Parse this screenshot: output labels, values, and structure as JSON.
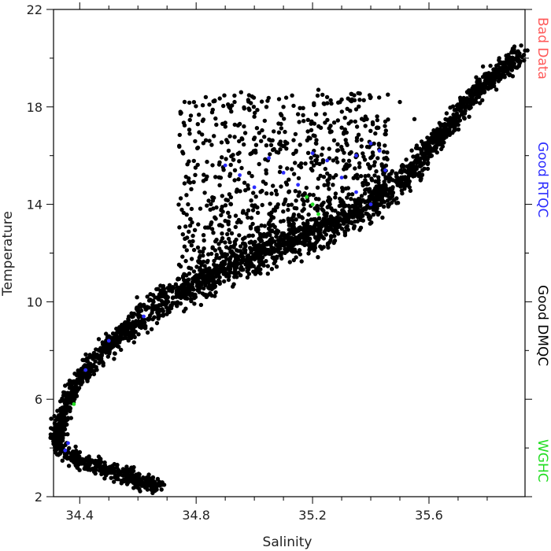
{
  "chart_data": {
    "type": "scatter",
    "xlabel": "Salinity",
    "ylabel": "Temperature",
    "xlim": [
      34.31,
      35.93
    ],
    "ylim": [
      2,
      22
    ],
    "x_ticks": [
      "34.4",
      "34.8",
      "35.2",
      "35.6"
    ],
    "y_ticks": [
      "2",
      "6",
      "10",
      "14",
      "18",
      "22"
    ],
    "grid": false,
    "legend_placement": "right side, vertical",
    "series": [
      {
        "name": "Bad Data",
        "color": "#ff5a5a"
      },
      {
        "name": "Good RTQC",
        "color": "#2c2cff"
      },
      {
        "name": "Good DMQC",
        "color": "#000000"
      },
      {
        "name": "WGHC",
        "color": "#22dd22"
      }
    ],
    "main_curve": [
      {
        "x": 34.68,
        "y": 2.4
      },
      {
        "x": 34.6,
        "y": 2.7
      },
      {
        "x": 34.5,
        "y": 3.1
      },
      {
        "x": 34.4,
        "y": 3.5
      },
      {
        "x": 34.34,
        "y": 3.9
      },
      {
        "x": 34.32,
        "y": 4.5
      },
      {
        "x": 34.34,
        "y": 5.3
      },
      {
        "x": 34.37,
        "y": 6.2
      },
      {
        "x": 34.42,
        "y": 7.2
      },
      {
        "x": 34.5,
        "y": 8.2
      },
      {
        "x": 34.6,
        "y": 9.2
      },
      {
        "x": 34.72,
        "y": 10.2
      },
      {
        "x": 34.88,
        "y": 11.2
      },
      {
        "x": 35.05,
        "y": 12.1
      },
      {
        "x": 35.25,
        "y": 13.0
      },
      {
        "x": 35.4,
        "y": 13.9
      },
      {
        "x": 35.55,
        "y": 15.5
      },
      {
        "x": 35.65,
        "y": 17.0
      },
      {
        "x": 35.75,
        "y": 18.5
      },
      {
        "x": 35.85,
        "y": 19.5
      },
      {
        "x": 35.92,
        "y": 20.2
      }
    ],
    "upper_cloud": {
      "x_range": [
        34.72,
        35.5
      ],
      "y_range": [
        11.0,
        18.7
      ],
      "density": "dense near the main curve, sparse above"
    },
    "rtqc_points": [
      {
        "x": 34.9,
        "y": 15.6
      },
      {
        "x": 34.95,
        "y": 15.2
      },
      {
        "x": 35.0,
        "y": 14.7
      },
      {
        "x": 35.05,
        "y": 15.9
      },
      {
        "x": 35.1,
        "y": 15.3
      },
      {
        "x": 35.15,
        "y": 14.8
      },
      {
        "x": 35.2,
        "y": 16.1
      },
      {
        "x": 35.25,
        "y": 15.8
      },
      {
        "x": 35.3,
        "y": 15.1
      },
      {
        "x": 35.35,
        "y": 14.5
      },
      {
        "x": 35.4,
        "y": 16.5
      },
      {
        "x": 35.43,
        "y": 16.2
      },
      {
        "x": 35.35,
        "y": 16.0
      },
      {
        "x": 35.45,
        "y": 15.4
      },
      {
        "x": 35.4,
        "y": 14.0
      },
      {
        "x": 34.62,
        "y": 9.4
      },
      {
        "x": 34.5,
        "y": 8.4
      },
      {
        "x": 34.42,
        "y": 7.2
      },
      {
        "x": 34.36,
        "y": 4.2
      },
      {
        "x": 34.35,
        "y": 3.9
      }
    ],
    "wghc_points": [
      {
        "x": 35.18,
        "y": 14.3
      },
      {
        "x": 35.2,
        "y": 14.0
      },
      {
        "x": 35.22,
        "y": 13.6
      },
      {
        "x": 34.38,
        "y": 5.8
      }
    ]
  }
}
